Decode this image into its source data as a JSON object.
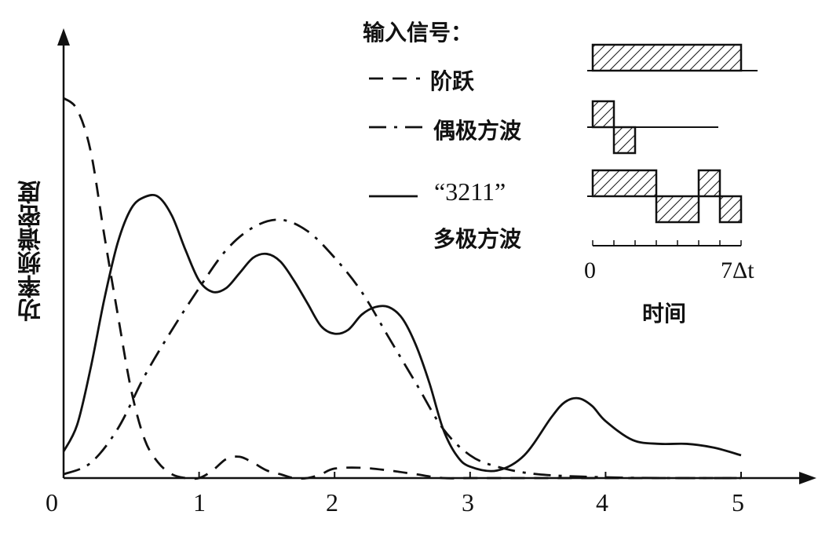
{
  "chart_data": {
    "type": "line",
    "title": "",
    "xlabel": "",
    "ylabel": "功率频谱密度",
    "xlim": [
      0,
      5
    ],
    "ylim": [
      0,
      1.15
    ],
    "grid": false,
    "x_ticks": [
      "0",
      "1",
      "2",
      "3",
      "4",
      "5"
    ],
    "legend": {
      "title": "输入信号：",
      "placement": "top-right",
      "entries": [
        {
          "style": "dashed",
          "label": "阶跃"
        },
        {
          "style": "dash-dot",
          "label": "偶极方波"
        },
        {
          "style": "solid",
          "label": "“3211”",
          "label2": "多极方波"
        }
      ]
    },
    "series": [
      {
        "name": "阶跃",
        "style": "dashed",
        "x": [
          0,
          0.1,
          0.2,
          0.3,
          0.4,
          0.5,
          0.6,
          0.7,
          0.8,
          0.9,
          1.0,
          1.1,
          1.2,
          1.3,
          1.4,
          1.5,
          1.6,
          1.7,
          1.8,
          1.9,
          2.0,
          2.2,
          2.4,
          2.6,
          2.8,
          3.0,
          3.5,
          4.0,
          4.5,
          5.0
        ],
        "y": [
          1.0,
          0.97,
          0.86,
          0.64,
          0.43,
          0.23,
          0.1,
          0.04,
          0.01,
          0,
          0,
          0.02,
          0.05,
          0.056,
          0.04,
          0.02,
          0.01,
          0,
          0,
          0.01,
          0.025,
          0.027,
          0.02,
          0.01,
          0,
          0,
          0,
          0,
          0,
          0
        ]
      },
      {
        "name": "偶极方波",
        "style": "dash-dot",
        "x": [
          0,
          0.2,
          0.4,
          0.6,
          0.8,
          1.0,
          1.2,
          1.4,
          1.6,
          1.8,
          2.0,
          2.2,
          2.4,
          2.6,
          2.8,
          3.0,
          3.2,
          3.5,
          4.0,
          4.5,
          5.0
        ],
        "y": [
          0.01,
          0.04,
          0.13,
          0.27,
          0.39,
          0.5,
          0.6,
          0.66,
          0.68,
          0.65,
          0.58,
          0.49,
          0.37,
          0.25,
          0.13,
          0.06,
          0.03,
          0.01,
          0.002,
          0,
          0
        ]
      },
      {
        "name": "“3211” 多极方波",
        "style": "solid",
        "x": [
          0,
          0.1,
          0.2,
          0.3,
          0.4,
          0.5,
          0.6,
          0.7,
          0.8,
          0.9,
          1.0,
          1.1,
          1.2,
          1.3,
          1.4,
          1.5,
          1.6,
          1.7,
          1.8,
          1.9,
          2.0,
          2.1,
          2.2,
          2.3,
          2.4,
          2.5,
          2.6,
          2.7,
          2.8,
          2.9,
          3.0,
          3.2,
          3.4,
          3.6,
          3.7,
          3.8,
          3.9,
          4.0,
          4.2,
          4.4,
          4.6,
          4.8,
          5.0
        ],
        "y": [
          0.07,
          0.14,
          0.29,
          0.47,
          0.62,
          0.71,
          0.74,
          0.74,
          0.69,
          0.6,
          0.52,
          0.49,
          0.5,
          0.54,
          0.58,
          0.59,
          0.57,
          0.52,
          0.46,
          0.4,
          0.38,
          0.39,
          0.43,
          0.45,
          0.45,
          0.42,
          0.35,
          0.25,
          0.13,
          0.06,
          0.03,
          0.02,
          0.06,
          0.16,
          0.2,
          0.21,
          0.19,
          0.15,
          0.1,
          0.09,
          0.09,
          0.08,
          0.06
        ]
      }
    ],
    "inset": {
      "time_start_label": "0",
      "time_end_label": "7Δt",
      "time_axis_label": "时间",
      "signals": [
        {
          "name": "阶跃",
          "levels": [
            1,
            1,
            1,
            1,
            1,
            1,
            1
          ]
        },
        {
          "name": "偶极方波",
          "levels": [
            1,
            -1,
            0,
            0,
            0,
            0,
            0
          ]
        },
        {
          "name": "3211",
          "levels": [
            1,
            1,
            1,
            -1,
            -1,
            1,
            -1
          ]
        }
      ]
    }
  }
}
